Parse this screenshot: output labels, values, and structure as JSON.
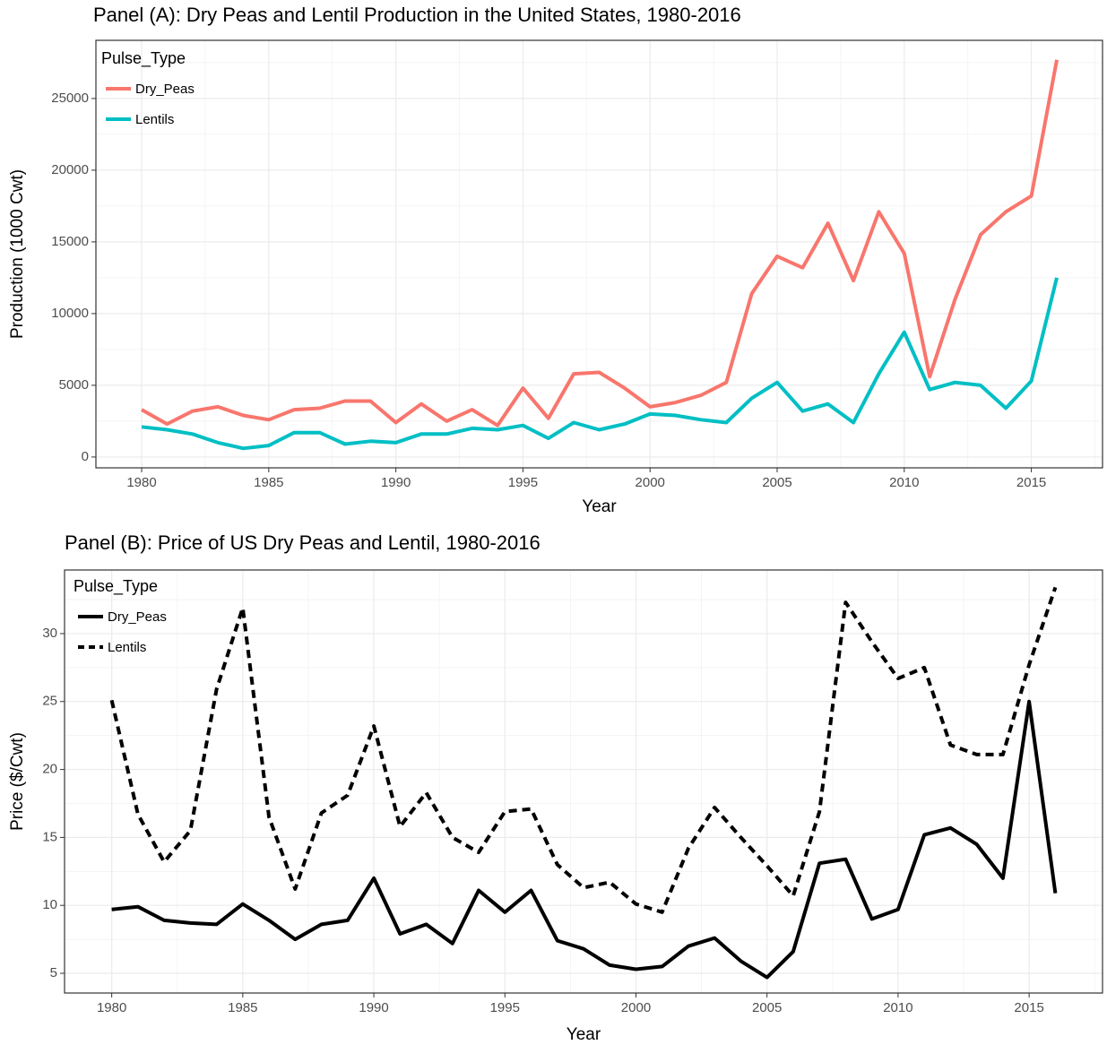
{
  "chart_data": [
    {
      "type": "line",
      "title": "Panel (A): Dry Peas and Lentil Production in the United States, 1980-2016",
      "x_label": "Year",
      "y_label": "Production (1000 Cwt)",
      "legend_title": "Pulse_Type",
      "x": [
        1980,
        1981,
        1982,
        1983,
        1984,
        1985,
        1986,
        1987,
        1988,
        1989,
        1990,
        1991,
        1992,
        1993,
        1994,
        1995,
        1996,
        1997,
        1998,
        1999,
        2000,
        2001,
        2002,
        2003,
        2004,
        2005,
        2006,
        2007,
        2008,
        2009,
        2010,
        2011,
        2012,
        2013,
        2014,
        2015,
        2016
      ],
      "xlim": [
        1978.2,
        2017.8
      ],
      "xticks": [
        1980,
        1985,
        1990,
        1995,
        2000,
        2005,
        2010,
        2015
      ],
      "ylim": [
        -755,
        29055
      ],
      "yticks": [
        0,
        5000,
        10000,
        15000,
        20000,
        25000
      ],
      "grid": true,
      "series": [
        {
          "name": "Dry_Peas",
          "color": "#f8766d",
          "dash": "solid",
          "values": [
            3300,
            2300,
            3200,
            3500,
            2900,
            2600,
            3300,
            3400,
            3900,
            3900,
            2400,
            3700,
            2500,
            3300,
            2200,
            4800,
            2700,
            5800,
            5900,
            4800,
            3500,
            3800,
            4300,
            5200,
            11400,
            14000,
            13200,
            16300,
            12300,
            17100,
            14200,
            5600,
            11000,
            15500,
            17100,
            18200,
            27700
          ]
        },
        {
          "name": "Lentils",
          "color": "#00bfc4",
          "dash": "solid",
          "values": [
            2100,
            1900,
            1600,
            1000,
            600,
            800,
            1700,
            1700,
            900,
            1100,
            1000,
            1600,
            1600,
            2000,
            1900,
            2200,
            1300,
            2400,
            1900,
            2300,
            3000,
            2900,
            2600,
            2400,
            4100,
            5200,
            3200,
            3700,
            2400,
            5800,
            8700,
            4700,
            5200,
            5000,
            3400,
            5300,
            12500
          ]
        }
      ]
    },
    {
      "type": "line",
      "title": "Panel (B): Price of US Dry Peas and Lentil, 1980-2016",
      "x_label": "Year",
      "y_label": "Price ($/Cwt)",
      "legend_title": "Pulse_Type",
      "x": [
        1980,
        1981,
        1982,
        1983,
        1984,
        1985,
        1986,
        1987,
        1988,
        1989,
        1990,
        1991,
        1992,
        1993,
        1994,
        1995,
        1996,
        1997,
        1998,
        1999,
        2000,
        2001,
        2002,
        2003,
        2004,
        2005,
        2006,
        2007,
        2008,
        2009,
        2010,
        2011,
        2012,
        2013,
        2014,
        2015,
        2016
      ],
      "xlim": [
        1978.2,
        2017.8
      ],
      "xticks": [
        1980,
        1985,
        1990,
        1995,
        2000,
        2005,
        2010,
        2015
      ],
      "ylim": [
        3.55,
        34.68
      ],
      "yticks": [
        5,
        10,
        15,
        20,
        25,
        30
      ],
      "grid": true,
      "series": [
        {
          "name": "Dry_Peas",
          "color": "#000000",
          "dash": "solid",
          "values": [
            9.7,
            9.9,
            8.9,
            8.7,
            8.6,
            10.1,
            8.9,
            7.5,
            8.6,
            8.9,
            12.0,
            7.9,
            8.6,
            7.2,
            11.1,
            9.5,
            11.1,
            7.4,
            6.8,
            5.6,
            5.3,
            5.5,
            7.0,
            7.6,
            5.9,
            4.7,
            6.6,
            13.1,
            13.4,
            9.0,
            9.7,
            15.2,
            15.7,
            14.5,
            12.0,
            25.0,
            10.9
          ]
        },
        {
          "name": "Lentils",
          "color": "#000000",
          "dash": "dashed",
          "values": [
            25.1,
            16.7,
            13.2,
            15.5,
            25.9,
            31.9,
            16.5,
            11.2,
            16.8,
            18.1,
            23.2,
            15.8,
            18.3,
            15.0,
            13.9,
            16.9,
            17.1,
            13.0,
            11.3,
            11.7,
            10.1,
            9.5,
            14.2,
            17.2,
            15.0,
            12.9,
            10.7,
            16.9,
            32.3,
            29.4,
            26.7,
            27.5,
            21.8,
            21.1,
            21.1,
            27.7,
            33.4
          ]
        }
      ]
    }
  ]
}
